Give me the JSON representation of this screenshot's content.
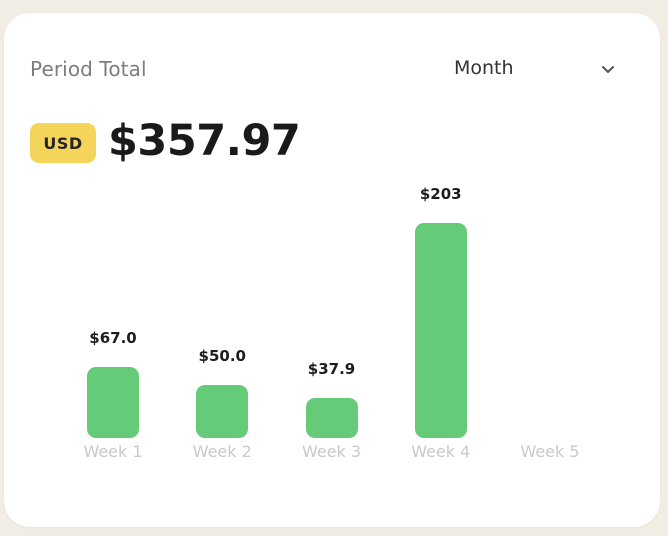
{
  "header": {
    "label": "Period Total",
    "period_select": {
      "value": "Month",
      "icon": "chevron-down-icon"
    }
  },
  "total": {
    "currency": "USD",
    "amount": "$357.97"
  },
  "colors": {
    "background": "#f1ede4",
    "card": "#ffffff",
    "bar": "#66cb78",
    "badge": "#f5d45a",
    "week_label": "#c9c9c9"
  },
  "chart_data": {
    "type": "bar",
    "categories": [
      "Week 1",
      "Week 2",
      "Week 3",
      "Week 4",
      "Week 5"
    ],
    "values": [
      67.0,
      50.0,
      37.9,
      203,
      null
    ],
    "value_labels": [
      "$67.0",
      "$50.0",
      "$37.9",
      "$203",
      ""
    ],
    "ylim": [
      0,
      203
    ],
    "grid": false
  }
}
